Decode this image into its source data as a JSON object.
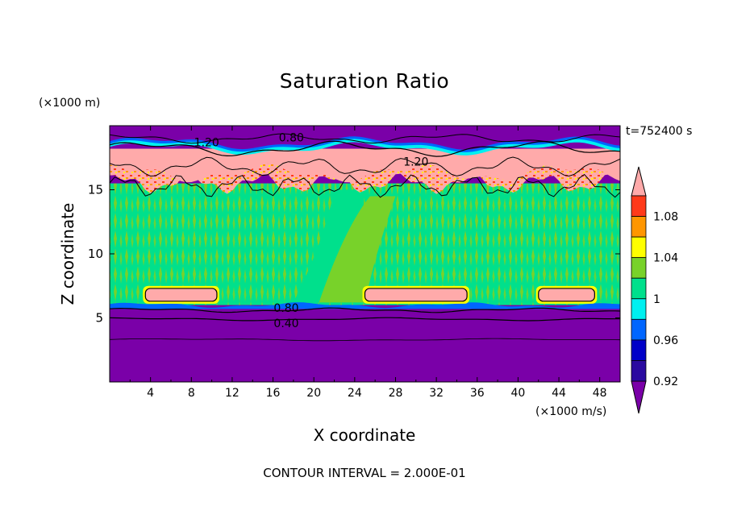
{
  "chart_data": {
    "type": "heatmap",
    "title": "Saturation Ratio",
    "xlabel": "X coordinate",
    "ylabel": "Z coordinate",
    "x_unit": "(×1000 m/s)",
    "y_unit": "(×1000 m)",
    "time_label": "t=752400 s",
    "footer": "CONTOUR INTERVAL = 2.000E-01",
    "xlim": [
      0,
      50
    ],
    "ylim": [
      0,
      20
    ],
    "x_ticks": [
      4,
      8,
      12,
      16,
      20,
      24,
      28,
      32,
      36,
      40,
      44,
      48
    ],
    "y_ticks": [
      5,
      10,
      15
    ],
    "colorbar": {
      "labels": [
        "0.92",
        "0.96",
        "1",
        "1.04",
        "1.08"
      ],
      "bands": [
        {
          "low": 0.9,
          "high": 0.92,
          "color": "#7a00a8"
        },
        {
          "low": 0.92,
          "high": 0.94,
          "color": "#2a0aa0"
        },
        {
          "low": 0.94,
          "high": 0.96,
          "color": "#0000c8"
        },
        {
          "low": 0.96,
          "high": 0.98,
          "color": "#0066ff"
        },
        {
          "low": 0.98,
          "high": 1.0,
          "color": "#00f0f0"
        },
        {
          "low": 1.0,
          "high": 1.02,
          "color": "#00e08c"
        },
        {
          "low": 1.02,
          "high": 1.04,
          "color": "#78d22a"
        },
        {
          "low": 1.04,
          "high": 1.06,
          "color": "#ffff00"
        },
        {
          "low": 1.06,
          "high": 1.08,
          "color": "#ff9600"
        },
        {
          "low": 1.08,
          "high": 1.1,
          "color": "#ff3a1a"
        },
        {
          "low": 1.1,
          "high": 1.12,
          "color": "#ffaaaa"
        }
      ],
      "under_color": "#7a00a8",
      "over_color": "#ffaaaa"
    },
    "contour_labels": [
      {
        "text": "1.20",
        "x": 9.5,
        "z": 18.7
      },
      {
        "text": "0.80",
        "x": 17.8,
        "z": 19.1
      },
      {
        "text": "1.20",
        "x": 30.0,
        "z": 17.2
      },
      {
        "text": "0.80",
        "x": 17.3,
        "z": 5.8
      },
      {
        "text": "0.40",
        "x": 17.3,
        "z": 4.6
      }
    ],
    "regions": [
      {
        "name": "upper-dry-layer",
        "z": [
          18.2,
          20
        ],
        "value": 0.9
      },
      {
        "name": "supersaturated-cirrus-layer",
        "z": [
          15.5,
          18.2
        ],
        "value": 1.12
      },
      {
        "name": "mixed-cloud-layer",
        "z": [
          6.0,
          15.5
        ],
        "value": 1.0
      },
      {
        "name": "lower-dry-layer",
        "z": [
          0,
          6.0
        ],
        "value": 0.9
      }
    ],
    "lower_pockets": [
      {
        "x": [
          3.5,
          10.5
        ],
        "z": [
          6.3,
          7.3
        ],
        "value": 1.12
      },
      {
        "x": [
          25.0,
          35.0
        ],
        "z": [
          6.3,
          7.3
        ],
        "value": 1.12
      },
      {
        "x": [
          42.0,
          47.5
        ],
        "z": [
          6.3,
          7.3
        ],
        "value": 1.12
      }
    ]
  }
}
